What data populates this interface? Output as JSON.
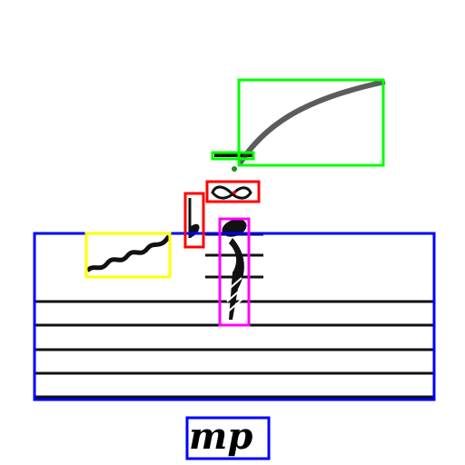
{
  "score": {
    "staff_line_count": 5,
    "ledger_line_count": 2,
    "dynamic": "mp"
  },
  "annotations": [
    {
      "label": "staff",
      "color": "#0000ff"
    },
    {
      "label": "slur",
      "color": "#00ff00"
    },
    {
      "label": "articulation",
      "color": "#00ff00"
    },
    {
      "label": "ornament-turn",
      "color": "#ff0000"
    },
    {
      "label": "flat",
      "color": "#ff0000"
    },
    {
      "label": "trill-wavy-line",
      "color": "#ffff00"
    },
    {
      "label": "note-with-ledger-lines",
      "color": "#ff00ff"
    },
    {
      "label": "dynamic",
      "color": "#0000ff"
    }
  ]
}
